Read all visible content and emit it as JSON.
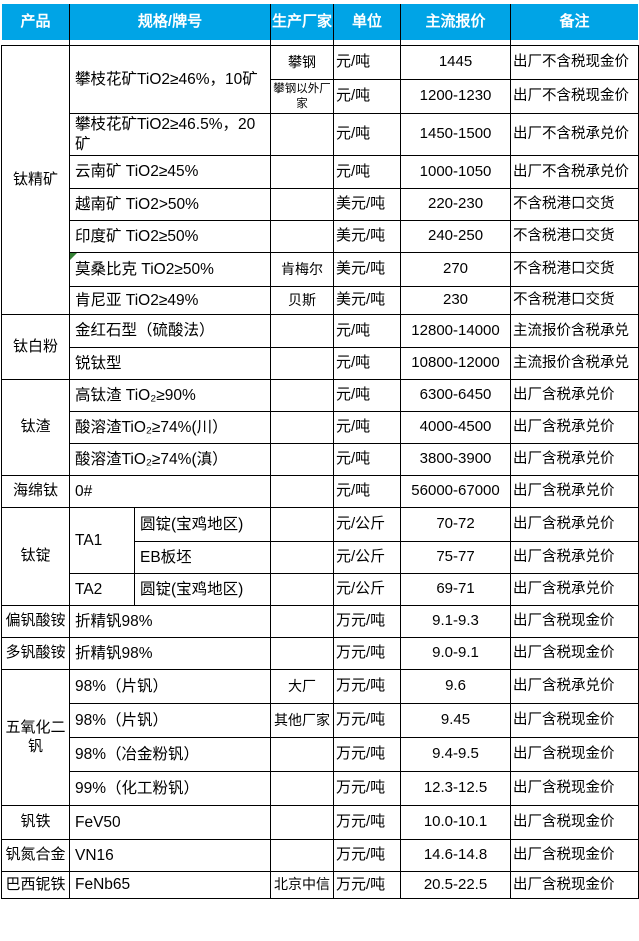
{
  "colors": {
    "header_bg": "#00A4E6",
    "header_text": "#FFFFFF",
    "grid_border": "#000000",
    "comment_marker": "#338033"
  },
  "header": {
    "columns": [
      "产品",
      "规格/牌号",
      "生产厂家",
      "单位",
      "主流报价",
      "备注"
    ]
  },
  "rows": [
    {
      "cells": [
        {
          "t": "钛精矿",
          "k": "prod",
          "rs": 8
        },
        {
          "t": "攀枝花矿TiO2≥46%，10矿",
          "k": "spec",
          "cs": 2,
          "rs": 2
        },
        {
          "t": "攀钢",
          "k": "mfr"
        },
        {
          "t": "元/吨",
          "k": "unit"
        },
        {
          "t": "1445",
          "k": "price"
        },
        {
          "t": "出厂不含税现金价",
          "k": "note"
        }
      ]
    },
    {
      "cells": [
        {
          "t": "攀钢以外厂家",
          "k": "mfr",
          "small": true
        },
        {
          "t": "元/吨",
          "k": "unit"
        },
        {
          "t": "1200-1230",
          "k": "price"
        },
        {
          "t": "出厂不含税现金价",
          "k": "note"
        }
      ]
    },
    {
      "cells": [
        {
          "t": "攀枝花矿TiO2≥46.5%，20矿",
          "k": "spec",
          "cs": 2
        },
        {
          "t": "",
          "k": "mfr"
        },
        {
          "t": "元/吨",
          "k": "unit"
        },
        {
          "t": "1450-1500",
          "k": "price"
        },
        {
          "t": "出厂不含税承兑价",
          "k": "note"
        }
      ]
    },
    {
      "cells": [
        {
          "t": "云南矿 TiO2≥45%",
          "k": "spec",
          "cs": 2
        },
        {
          "t": "",
          "k": "mfr"
        },
        {
          "t": "元/吨",
          "k": "unit"
        },
        {
          "t": "1000-1050",
          "k": "price"
        },
        {
          "t": "出厂不含税承兑价",
          "k": "note"
        }
      ]
    },
    {
      "cells": [
        {
          "t": "越南矿 TiO2>50%",
          "k": "spec",
          "cs": 2
        },
        {
          "t": "",
          "k": "mfr"
        },
        {
          "t": "美元/吨",
          "k": "unit"
        },
        {
          "t": "220-230",
          "k": "price"
        },
        {
          "t": "不含税港口交货",
          "k": "note"
        }
      ]
    },
    {
      "cells": [
        {
          "t": "印度矿 TiO2≥50%",
          "k": "spec",
          "cs": 2
        },
        {
          "t": "",
          "k": "mfr"
        },
        {
          "t": "美元/吨",
          "k": "unit"
        },
        {
          "t": "240-250",
          "k": "price"
        },
        {
          "t": "不含税港口交货",
          "k": "note"
        }
      ]
    },
    {
      "cells": [
        {
          "t": "莫桑比克 TiO2≥50%",
          "k": "spec",
          "cs": 2,
          "m": true
        },
        {
          "t": "肯梅尔",
          "k": "mfr"
        },
        {
          "t": "美元/吨",
          "k": "unit"
        },
        {
          "t": "270",
          "k": "price"
        },
        {
          "t": "不含税港口交货",
          "k": "note"
        }
      ]
    },
    {
      "cells": [
        {
          "t": "肯尼亚 TiO2≥49%",
          "k": "spec",
          "cs": 2
        },
        {
          "t": "贝斯",
          "k": "mfr"
        },
        {
          "t": "美元/吨",
          "k": "unit"
        },
        {
          "t": "230",
          "k": "price"
        },
        {
          "t": "不含税港口交货",
          "k": "note"
        }
      ]
    },
    {
      "cells": [
        {
          "t": "钛白粉",
          "k": "prod",
          "rs": 2
        },
        {
          "t": "金红石型（硫酸法）",
          "k": "spec",
          "cs": 2
        },
        {
          "t": "",
          "k": "mfr"
        },
        {
          "t": "元/吨",
          "k": "unit"
        },
        {
          "t": "12800-14000",
          "k": "price"
        },
        {
          "t": "主流报价含税承兑",
          "k": "note"
        }
      ]
    },
    {
      "cells": [
        {
          "t": "锐钛型",
          "k": "spec",
          "cs": 2
        },
        {
          "t": "",
          "k": "mfr"
        },
        {
          "t": "元/吨",
          "k": "unit"
        },
        {
          "t": "10800-12000",
          "k": "price"
        },
        {
          "t": "主流报价含税承兑",
          "k": "note"
        }
      ]
    },
    {
      "cells": [
        {
          "t": "钛渣",
          "k": "prod",
          "rs": 3
        },
        {
          "t": "高钛渣 TiO₂≥90%",
          "k": "spec",
          "cs": 2
        },
        {
          "t": "",
          "k": "mfr"
        },
        {
          "t": "元/吨",
          "k": "unit"
        },
        {
          "t": "6300-6450",
          "k": "price"
        },
        {
          "t": "出厂含税承兑价",
          "k": "note"
        }
      ]
    },
    {
      "cells": [
        {
          "t": "酸溶渣TiO₂≥74%(川）",
          "k": "spec",
          "cs": 2
        },
        {
          "t": "",
          "k": "mfr"
        },
        {
          "t": "元/吨",
          "k": "unit"
        },
        {
          "t": "4000-4500",
          "k": "price"
        },
        {
          "t": "出厂含税承兑价",
          "k": "note"
        }
      ]
    },
    {
      "cells": [
        {
          "t": "酸溶渣TiO₂≥74%(滇）",
          "k": "spec",
          "cs": 2
        },
        {
          "t": "",
          "k": "mfr"
        },
        {
          "t": "元/吨",
          "k": "unit"
        },
        {
          "t": "3800-3900",
          "k": "price"
        },
        {
          "t": "出厂含税承兑价",
          "k": "note"
        }
      ]
    },
    {
      "cells": [
        {
          "t": "海绵钛",
          "k": "prod"
        },
        {
          "t": "0#",
          "k": "spec",
          "cs": 2
        },
        {
          "t": "",
          "k": "mfr"
        },
        {
          "t": "元/吨",
          "k": "unit"
        },
        {
          "t": "56000-67000",
          "k": "price"
        },
        {
          "t": "出厂含税承兑价",
          "k": "note"
        }
      ]
    },
    {
      "cells": [
        {
          "t": "钛锭",
          "k": "prod",
          "rs": 3
        },
        {
          "t": "TA1",
          "k": "spec",
          "rs": 2
        },
        {
          "t": "圆锭(宝鸡地区)",
          "k": "spec"
        },
        {
          "t": "",
          "k": "mfr"
        },
        {
          "t": "元/公斤",
          "k": "unit"
        },
        {
          "t": "70-72",
          "k": "price"
        },
        {
          "t": "出厂含税承兑价",
          "k": "note"
        }
      ]
    },
    {
      "cells": [
        {
          "t": "EB板坯",
          "k": "spec"
        },
        {
          "t": "",
          "k": "mfr"
        },
        {
          "t": "元/公斤",
          "k": "unit"
        },
        {
          "t": "75-77",
          "k": "price"
        },
        {
          "t": "出厂含税承兑价",
          "k": "note"
        }
      ]
    },
    {
      "cells": [
        {
          "t": "TA2",
          "k": "spec"
        },
        {
          "t": "圆锭(宝鸡地区)",
          "k": "spec"
        },
        {
          "t": "",
          "k": "mfr"
        },
        {
          "t": "元/公斤",
          "k": "unit"
        },
        {
          "t": "69-71",
          "k": "price"
        },
        {
          "t": "出厂含税承兑价",
          "k": "note"
        }
      ]
    },
    {
      "cells": [
        {
          "t": "偏钒酸铵",
          "k": "prod"
        },
        {
          "t": "折精钒98%",
          "k": "spec",
          "cs": 2
        },
        {
          "t": "",
          "k": "mfr"
        },
        {
          "t": "万元/吨",
          "k": "unit"
        },
        {
          "t": "9.1-9.3",
          "k": "price"
        },
        {
          "t": "出厂含税现金价",
          "k": "note"
        }
      ]
    },
    {
      "cells": [
        {
          "t": "多钒酸铵",
          "k": "prod"
        },
        {
          "t": "折精钒98%",
          "k": "spec",
          "cs": 2
        },
        {
          "t": "",
          "k": "mfr"
        },
        {
          "t": "万元/吨",
          "k": "unit"
        },
        {
          "t": "9.0-9.1",
          "k": "price"
        },
        {
          "t": "出厂含税现金价",
          "k": "note"
        }
      ]
    },
    {
      "cells": [
        {
          "t": "五氧化二钒",
          "k": "prod",
          "rs": 4
        },
        {
          "t": "98%（片钒）",
          "k": "spec",
          "cs": 2
        },
        {
          "t": "大厂",
          "k": "mfr"
        },
        {
          "t": "万元/吨",
          "k": "unit"
        },
        {
          "t": "9.6",
          "k": "price"
        },
        {
          "t": "出厂含税承兑价",
          "k": "note"
        }
      ]
    },
    {
      "cells": [
        {
          "t": "98%（片钒）",
          "k": "spec",
          "cs": 2
        },
        {
          "t": "其他厂家",
          "k": "mfr"
        },
        {
          "t": "万元/吨",
          "k": "unit"
        },
        {
          "t": "9.45",
          "k": "price"
        },
        {
          "t": "出厂含税现金价",
          "k": "note"
        }
      ]
    },
    {
      "cells": [
        {
          "t": "98%（冶金粉钒）",
          "k": "spec",
          "cs": 2
        },
        {
          "t": "",
          "k": "mfr"
        },
        {
          "t": "万元/吨",
          "k": "unit"
        },
        {
          "t": "9.4-9.5",
          "k": "price"
        },
        {
          "t": "出厂含税现金价",
          "k": "note"
        }
      ]
    },
    {
      "cells": [
        {
          "t": "99%（化工粉钒）",
          "k": "spec",
          "cs": 2
        },
        {
          "t": "",
          "k": "mfr"
        },
        {
          "t": "万元/吨",
          "k": "unit"
        },
        {
          "t": "12.3-12.5",
          "k": "price"
        },
        {
          "t": "出厂含税现金价",
          "k": "note"
        }
      ]
    },
    {
      "cells": [
        {
          "t": "钒铁",
          "k": "prod"
        },
        {
          "t": "FeV50",
          "k": "spec",
          "cs": 2
        },
        {
          "t": "",
          "k": "mfr"
        },
        {
          "t": "万元/吨",
          "k": "unit"
        },
        {
          "t": "10.0-10.1",
          "k": "price"
        },
        {
          "t": "出厂含税现金价",
          "k": "note"
        }
      ]
    },
    {
      "cells": [
        {
          "t": "钒氮合金",
          "k": "prod"
        },
        {
          "t": "VN16",
          "k": "spec",
          "cs": 2
        },
        {
          "t": "",
          "k": "mfr"
        },
        {
          "t": "万元/吨",
          "k": "unit"
        },
        {
          "t": "14.6-14.8",
          "k": "price"
        },
        {
          "t": "出厂含税现金价",
          "k": "note"
        }
      ]
    },
    {
      "cells": [
        {
          "t": "巴西铌铁",
          "k": "prod"
        },
        {
          "t": "FeNb65",
          "k": "spec",
          "cs": 2
        },
        {
          "t": "北京中信",
          "k": "mfr"
        },
        {
          "t": "万元/吨",
          "k": "unit"
        },
        {
          "t": "20.5-22.5",
          "k": "price"
        },
        {
          "t": "出厂含税现金价",
          "k": "note"
        }
      ]
    }
  ]
}
